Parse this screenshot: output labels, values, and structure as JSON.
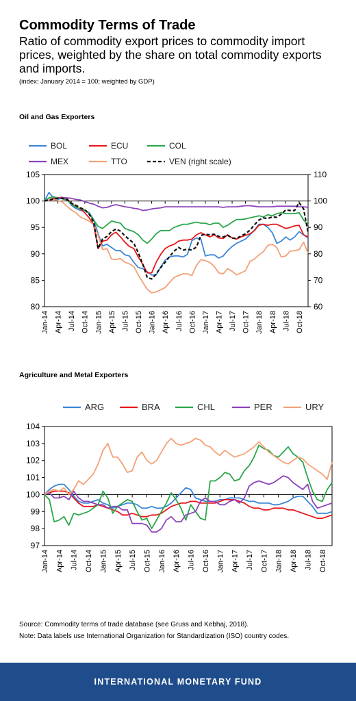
{
  "header": {
    "title": "Commodity Terms of Trade",
    "subtitle": "Ratio of commodity export prices to commodity import prices, weighted by the share on total commodity exports and imports.",
    "index_note": "(index: January 2014 = 100; weighted by GDP)"
  },
  "notes": {
    "source": "Source: Commodity terms of trade database (see Gruss and Kebhaj, 2018).",
    "note": "Note: Data labels use International Organization for Standardization (ISO) country codes."
  },
  "footer": {
    "org": "INTERNATIONAL MONETARY FUND"
  },
  "chart_data": [
    {
      "type": "line",
      "title": "Oil and Gas Exporters",
      "x": [
        "Jan-14",
        "Feb-14",
        "Mar-14",
        "Apr-14",
        "May-14",
        "Jun-14",
        "Jul-14",
        "Aug-14",
        "Sep-14",
        "Oct-14",
        "Nov-14",
        "Dec-14",
        "Jan-15",
        "Feb-15",
        "Mar-15",
        "Apr-15",
        "May-15",
        "Jun-15",
        "Jul-15",
        "Aug-15",
        "Sep-15",
        "Oct-15",
        "Nov-15",
        "Dec-15",
        "Jan-16",
        "Feb-16",
        "Mar-16",
        "Apr-16",
        "May-16",
        "Jun-16",
        "Jul-16",
        "Aug-16",
        "Sep-16",
        "Oct-16",
        "Nov-16",
        "Dec-16",
        "Jan-17",
        "Feb-17",
        "Mar-17",
        "Apr-17",
        "May-17",
        "Jun-17",
        "Jul-17",
        "Aug-17",
        "Sep-17",
        "Oct-17",
        "Nov-17",
        "Dec-17",
        "Jan-18",
        "Feb-18",
        "Mar-18",
        "Apr-18",
        "May-18",
        "Jun-18",
        "Jul-18",
        "Aug-18",
        "Sep-18",
        "Oct-18",
        "Nov-18",
        "Dec-18"
      ],
      "tick_labels": [
        "Jan-14",
        "Apr-14",
        "Jul-14",
        "Oct-14",
        "Jan-15",
        "Apr-15",
        "Jul-15",
        "Oct-15",
        "Jan-16",
        "Apr-16",
        "Jul-16",
        "Oct-16",
        "Jan-17",
        "Apr-17",
        "Jul-17",
        "Oct-17",
        "Jan-18",
        "Apr-18",
        "Jul-18",
        "Oct-18"
      ],
      "ylim": [
        80,
        105
      ],
      "yticks": [
        80,
        85,
        90,
        95,
        100,
        105
      ],
      "y2lim": [
        60,
        110
      ],
      "y2ticks": [
        60,
        70,
        80,
        90,
        100,
        110
      ],
      "legend_position": "top",
      "series": [
        {
          "name": "BOL",
          "color": "#3a86d8",
          "axis": "left",
          "dash": false,
          "values": [
            100,
            101.6,
            100.6,
            100.3,
            100.6,
            100.4,
            99.2,
            98.6,
            98.2,
            98.2,
            97.8,
            96.5,
            93.8,
            91.5,
            91.8,
            91.2,
            90.6,
            90.6,
            89.8,
            89.6,
            88.4,
            87.4,
            87.2,
            86.6,
            86.0,
            86.0,
            87.5,
            88.8,
            89.4,
            89.6,
            89.6,
            89.4,
            89.9,
            92.5,
            93.0,
            92.8,
            89.6,
            89.8,
            89.8,
            89.2,
            89.6,
            90.6,
            91.4,
            92.0,
            92.4,
            92.8,
            93.6,
            94.5,
            95.6,
            95.6,
            95.0,
            94.0,
            92.0,
            92.4,
            93.2,
            92.6,
            93.2,
            94.2,
            93.6,
            93.0
          ]
        },
        {
          "name": "ECU",
          "color": "#e8171b",
          "axis": "left",
          "dash": false,
          "values": [
            100,
            100.2,
            100.5,
            100.6,
            100.7,
            100.5,
            99.6,
            98.9,
            98.5,
            97.8,
            96.8,
            95.5,
            91.0,
            92.4,
            92.6,
            93.6,
            94.1,
            93.2,
            92.2,
            91.4,
            91.0,
            89.4,
            88.0,
            86.4,
            86.4,
            88.4,
            89.9,
            91.0,
            91.5,
            91.8,
            92.4,
            92.6,
            92.6,
            92.8,
            93.6,
            94.0,
            93.6,
            93.2,
            93.6,
            93.0,
            92.9,
            93.6,
            93.0,
            92.8,
            93.2,
            93.5,
            93.8,
            94.4,
            95.4,
            95.6,
            95.4,
            95.6,
            95.6,
            95.2,
            94.8,
            95.0,
            95.3,
            95.4,
            93.6,
            93.2
          ]
        },
        {
          "name": "COL",
          "color": "#2aa74a",
          "axis": "left",
          "dash": false,
          "values": [
            100,
            100.6,
            100.8,
            100.6,
            100.4,
            100.2,
            99.5,
            98.8,
            98.6,
            98.3,
            97.6,
            96.4,
            95.2,
            94.8,
            95.5,
            96.2,
            96.0,
            95.8,
            94.8,
            94.5,
            94.2,
            93.6,
            92.6,
            92.0,
            92.8,
            93.8,
            94.4,
            94.4,
            94.4,
            95.0,
            95.3,
            95.6,
            95.6,
            95.8,
            96.0,
            95.8,
            95.8,
            95.5,
            95.8,
            95.8,
            95.0,
            95.4,
            96.0,
            96.5,
            96.5,
            96.6,
            96.8,
            97.0,
            97.2,
            97.0,
            97.4,
            97.2,
            97.6,
            97.8,
            97.6,
            97.6,
            97.6,
            97.8,
            96.4,
            95.5
          ]
        },
        {
          "name": "MEX",
          "color": "#8d44ba",
          "axis": "left",
          "dash": false,
          "values": [
            100,
            100.1,
            100.3,
            100.5,
            100.6,
            100.6,
            100.5,
            100.3,
            100.2,
            99.9,
            99.6,
            99.4,
            99.0,
            98.7,
            98.8,
            99.1,
            99.3,
            99.1,
            98.9,
            98.8,
            98.6,
            98.5,
            98.2,
            98.3,
            98.5,
            98.6,
            98.7,
            98.9,
            98.9,
            98.9,
            98.9,
            98.9,
            98.9,
            98.9,
            98.9,
            98.9,
            98.9,
            98.9,
            98.9,
            98.9,
            98.8,
            98.9,
            98.9,
            98.9,
            99.0,
            99.1,
            99.1,
            99.0,
            98.9,
            98.9,
            98.9,
            98.9,
            99.0,
            99.0,
            99.0,
            99.0,
            99.0,
            98.9,
            98.9,
            98.8
          ]
        },
        {
          "name": "TTO",
          "color": "#f3a176",
          "axis": "left",
          "dash": false,
          "values": [
            100,
            100.2,
            100.3,
            100.1,
            99.8,
            99.0,
            98.3,
            97.8,
            97.0,
            96.6,
            96.2,
            95.5,
            93.5,
            90.8,
            91.0,
            89.0,
            88.9,
            89.1,
            88.4,
            88.1,
            87.6,
            86.0,
            84.6,
            83.3,
            82.6,
            82.8,
            83.2,
            83.6,
            84.6,
            85.5,
            85.9,
            86.2,
            86.2,
            85.9,
            87.8,
            88.9,
            88.7,
            88.4,
            87.6,
            86.4,
            86.2,
            87.2,
            86.7,
            86.0,
            86.4,
            86.8,
            88.6,
            89.0,
            89.8,
            90.4,
            91.6,
            91.8,
            91.2,
            89.4,
            89.6,
            90.5,
            90.6,
            90.8,
            92.2,
            90.1
          ]
        },
        {
          "name": "VEN (right scale)",
          "color": "#111111",
          "axis": "right",
          "dash": true,
          "values": [
            100,
            100.4,
            100.8,
            101.0,
            101.0,
            100.6,
            99.2,
            98.4,
            97.4,
            96.8,
            95.0,
            92.0,
            82.0,
            85.6,
            86.6,
            88.4,
            89.4,
            88.6,
            86.8,
            85.4,
            84.0,
            80.4,
            76.0,
            71.0,
            70.5,
            72.4,
            74.8,
            76.8,
            79.0,
            81.0,
            82.4,
            81.4,
            81.8,
            81.4,
            82.6,
            87.0,
            87.4,
            87.2,
            87.4,
            86.6,
            86.4,
            87.0,
            86.0,
            85.8,
            86.8,
            87.6,
            89.0,
            91.0,
            92.8,
            93.6,
            93.4,
            94.0,
            93.8,
            95.0,
            96.6,
            96.4,
            96.4,
            99.4,
            97.0,
            88.0
          ]
        }
      ]
    },
    {
      "type": "line",
      "title": "Agriculture and Metal Exporters",
      "x": [
        "Jan-14",
        "Feb-14",
        "Mar-14",
        "Apr-14",
        "May-14",
        "Jun-14",
        "Jul-14",
        "Aug-14",
        "Sep-14",
        "Oct-14",
        "Nov-14",
        "Dec-14",
        "Jan-15",
        "Feb-15",
        "Mar-15",
        "Apr-15",
        "May-15",
        "Jun-15",
        "Jul-15",
        "Aug-15",
        "Sep-15",
        "Oct-15",
        "Nov-15",
        "Dec-15",
        "Jan-16",
        "Feb-16",
        "Mar-16",
        "Apr-16",
        "May-16",
        "Jun-16",
        "Jul-16",
        "Aug-16",
        "Sep-16",
        "Oct-16",
        "Nov-16",
        "Dec-16",
        "Jan-17",
        "Feb-17",
        "Mar-17",
        "Apr-17",
        "May-17",
        "Jun-17",
        "Jul-17",
        "Aug-17",
        "Sep-17",
        "Oct-17",
        "Nov-17",
        "Dec-17",
        "Jan-18",
        "Feb-18",
        "Mar-18",
        "Apr-18",
        "May-18",
        "Jun-18",
        "Jul-18",
        "Aug-18",
        "Sep-18",
        "Oct-18",
        "Nov-18",
        "Dec-18"
      ],
      "tick_labels": [
        "Jan-14",
        "Apr-14",
        "Jul-14",
        "Oct-14",
        "Jan-15",
        "Apr-15",
        "Jul-15",
        "Oct-15",
        "Jan-16",
        "Apr-16",
        "Jul-16",
        "Oct-16",
        "Jan-17",
        "Apr-17",
        "Jul-17",
        "Oct-17",
        "Jan-18",
        "Apr-18",
        "Jul-18",
        "Oct-18"
      ],
      "ylim": [
        97,
        104
      ],
      "yticks": [
        97,
        98,
        99,
        100,
        101,
        102,
        103,
        104
      ],
      "legend_position": "top",
      "series": [
        {
          "name": "ARG",
          "color": "#3a86d8",
          "values": [
            100,
            100.3,
            100.5,
            100.6,
            100.6,
            100.3,
            99.9,
            99.6,
            99.5,
            99.5,
            99.6,
            99.7,
            99.5,
            99.4,
            99.2,
            99.3,
            99.4,
            99.5,
            99.5,
            99.4,
            99.2,
            99.2,
            99.3,
            99.2,
            99.2,
            99.3,
            99.5,
            99.8,
            100.1,
            100.4,
            100.3,
            99.8,
            99.7,
            99.6,
            99.6,
            99.6,
            99.7,
            99.7,
            99.8,
            99.8,
            99.8,
            99.7,
            99.6,
            99.6,
            99.5,
            99.5,
            99.5,
            99.4,
            99.4,
            99.5,
            99.6,
            99.8,
            99.9,
            99.9,
            99.6,
            99.3,
            98.9,
            98.9,
            98.9,
            99.0
          ]
        },
        {
          "name": "BRA",
          "color": "#e8171b",
          "values": [
            100,
            100.1,
            100.2,
            100.2,
            100.2,
            100.1,
            99.8,
            99.5,
            99.3,
            99.3,
            99.3,
            99.4,
            99.3,
            99.2,
            99.1,
            99.0,
            98.8,
            98.8,
            98.9,
            98.8,
            98.7,
            98.7,
            98.8,
            98.8,
            98.9,
            99.1,
            99.3,
            99.4,
            99.5,
            99.5,
            99.6,
            99.6,
            99.5,
            99.5,
            99.5,
            99.5,
            99.6,
            99.7,
            99.7,
            99.7,
            99.6,
            99.5,
            99.3,
            99.2,
            99.2,
            99.1,
            99.1,
            99.2,
            99.2,
            99.2,
            99.1,
            99.1,
            99.0,
            98.9,
            98.8,
            98.7,
            98.6,
            98.6,
            98.7,
            98.8
          ]
        },
        {
          "name": "CHL",
          "color": "#2aa74a",
          "values": [
            100,
            99.7,
            98.4,
            98.5,
            98.7,
            98.2,
            98.9,
            98.8,
            98.9,
            99.0,
            99.2,
            99.4,
            100.2,
            99.8,
            98.9,
            99.3,
            99.5,
            99.7,
            99.6,
            99.0,
            98.5,
            98.6,
            98.0,
            98.5,
            99.0,
            99.5,
            100.1,
            99.7,
            99.2,
            98.5,
            99.4,
            99.0,
            98.6,
            98.5,
            100.8,
            100.8,
            101.0,
            101.3,
            101.2,
            100.8,
            100.9,
            101.4,
            101.7,
            102.2,
            102.9,
            102.7,
            102.6,
            102.3,
            102.2,
            102.5,
            102.8,
            102.4,
            102.2,
            101.9,
            101.0,
            100.2,
            99.7,
            99.6,
            100.3,
            100.7
          ]
        },
        {
          "name": "PER",
          "color": "#8d44ba",
          "values": [
            100,
            100.1,
            99.8,
            99.8,
            99.9,
            99.7,
            100.2,
            99.8,
            99.6,
            99.6,
            99.5,
            99.4,
            99.4,
            99.2,
            99.3,
            99.3,
            99.1,
            99.1,
            98.3,
            98.3,
            98.3,
            98.2,
            97.8,
            97.8,
            98.0,
            98.5,
            98.7,
            98.4,
            98.4,
            98.8,
            98.9,
            99.0,
            99.6,
            99.8,
            99.6,
            99.6,
            99.4,
            99.4,
            99.6,
            99.7,
            99.5,
            99.8,
            100.5,
            100.7,
            100.8,
            100.7,
            100.6,
            100.7,
            100.9,
            101.1,
            101.0,
            100.7,
            100.5,
            100.3,
            100.6,
            99.6,
            99.2,
            99.3,
            99.4,
            99.5
          ]
        },
        {
          "name": "URY",
          "color": "#f3a176",
          "values": [
            100,
            100.2,
            100.3,
            100.2,
            100.4,
            100.0,
            100.3,
            100.8,
            100.6,
            100.9,
            101.2,
            101.8,
            102.6,
            103.0,
            102.2,
            102.2,
            101.8,
            101.3,
            101.4,
            102.2,
            102.5,
            102.0,
            101.8,
            102.0,
            102.5,
            103.0,
            103.3,
            103.0,
            102.9,
            103.0,
            103.1,
            103.3,
            103.2,
            102.9,
            102.8,
            102.5,
            102.3,
            102.6,
            102.4,
            102.2,
            102.3,
            102.4,
            102.6,
            102.8,
            103.1,
            102.8,
            102.5,
            102.3,
            102.1,
            101.9,
            101.8,
            102.0,
            102.2,
            102.1,
            101.8,
            101.6,
            101.4,
            101.2,
            100.9,
            101.9
          ]
        }
      ]
    }
  ]
}
